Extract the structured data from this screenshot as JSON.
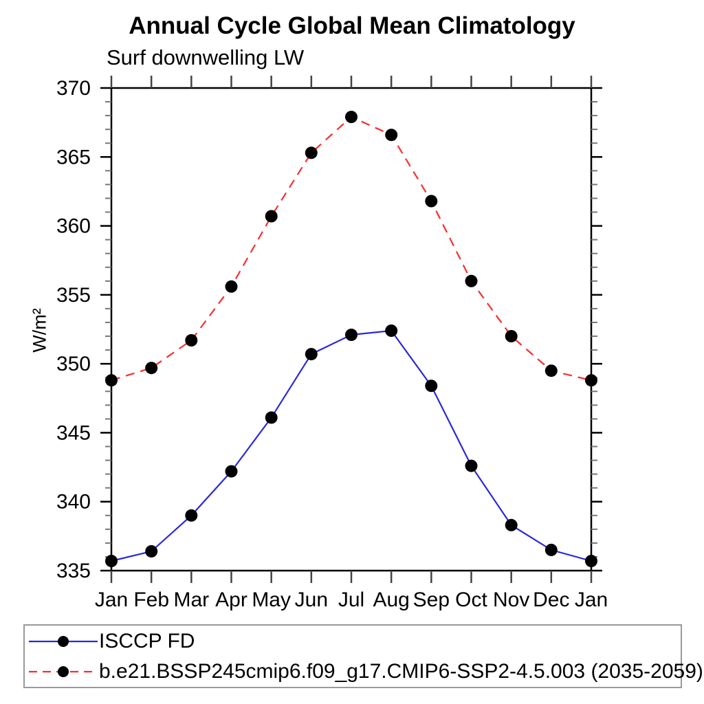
{
  "chart_data": {
    "type": "line",
    "title": "Annual Cycle Global Mean Climatology",
    "subtitle": "Surf downwelling LW",
    "ylabel": "W/m²",
    "xlabel": "",
    "categories": [
      "Jan",
      "Feb",
      "Mar",
      "Apr",
      "May",
      "Jun",
      "Jul",
      "Aug",
      "Sep",
      "Oct",
      "Nov",
      "Dec",
      "Jan"
    ],
    "series": [
      {
        "name": "ISCCP FD",
        "color": "#2727dd",
        "line_style": "solid",
        "marker": "black-dot",
        "values": [
          335.7,
          336.4,
          339.0,
          342.2,
          346.1,
          350.7,
          352.1,
          352.4,
          348.4,
          342.6,
          338.3,
          336.5,
          335.7
        ]
      },
      {
        "name": "b.e21.BSSP245cmip6.f09_g17.CMIP6-SSP2-4.5.003 (2035-2059)",
        "color": "#fb2c2c",
        "line_style": "dashed",
        "marker": "black-dot",
        "values": [
          348.8,
          349.7,
          351.7,
          355.6,
          360.7,
          365.3,
          367.9,
          366.6,
          361.8,
          356.0,
          352.0,
          349.5,
          348.8
        ]
      }
    ],
    "ylim": [
      335,
      370
    ],
    "yticks_major": [
      335,
      340,
      345,
      350,
      355,
      360,
      365,
      370
    ],
    "ytick_minor_step": 1,
    "grid": "off",
    "legend_position": "bottom-box",
    "colors": {
      "frame": "#000000",
      "major_tick": "#000000",
      "minor_tick": "#777777",
      "x_tick": "#444444",
      "marker": "#000000",
      "legend_border": "#999999"
    }
  }
}
